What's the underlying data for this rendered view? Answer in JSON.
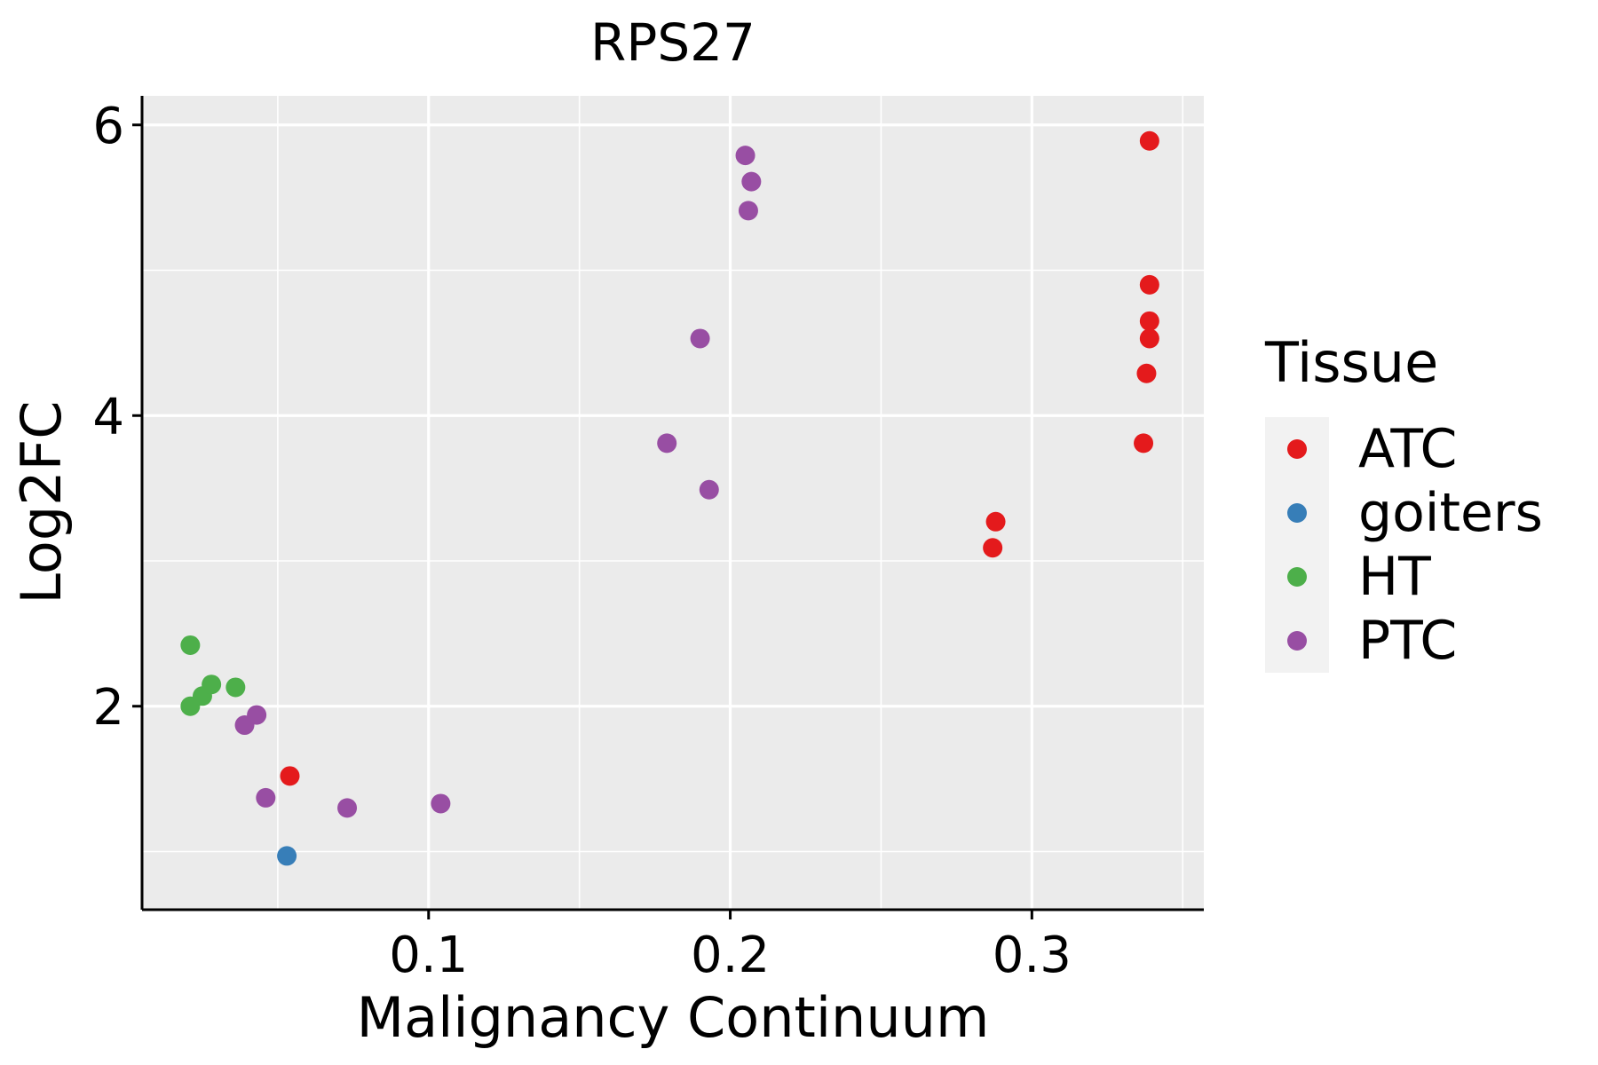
{
  "chart_data": {
    "type": "scatter",
    "title": "RPS27",
    "xlabel": "Malignancy Continuum",
    "ylabel": "Log2FC",
    "xlim": [
      0.005,
      0.357
    ],
    "ylim": [
      0.6,
      6.2
    ],
    "x_ticks": [
      0.1,
      0.2,
      0.3
    ],
    "x_tick_labels": [
      "0.1",
      "0.2",
      "0.3"
    ],
    "x_minor_ticks": [
      0.05,
      0.15,
      0.25,
      0.35
    ],
    "y_ticks": [
      2,
      4,
      6
    ],
    "y_tick_labels": [
      "2",
      "4",
      "6"
    ],
    "y_minor_ticks": [
      1,
      3,
      5
    ],
    "grid": true,
    "legend": {
      "title": "Tissue",
      "position": "right"
    },
    "series": [
      {
        "name": "ATC",
        "color": "#E41A1C",
        "points": [
          {
            "x": 0.054,
            "y": 1.52
          },
          {
            "x": 0.287,
            "y": 3.09
          },
          {
            "x": 0.288,
            "y": 3.27
          },
          {
            "x": 0.337,
            "y": 3.81
          },
          {
            "x": 0.338,
            "y": 4.29
          },
          {
            "x": 0.339,
            "y": 4.53
          },
          {
            "x": 0.339,
            "y": 4.65
          },
          {
            "x": 0.339,
            "y": 4.9
          },
          {
            "x": 0.339,
            "y": 5.89
          }
        ]
      },
      {
        "name": "goiters",
        "color": "#377EB8",
        "points": [
          {
            "x": 0.053,
            "y": 0.97
          }
        ]
      },
      {
        "name": "HT",
        "color": "#4DAF4A",
        "points": [
          {
            "x": 0.021,
            "y": 2.42
          },
          {
            "x": 0.021,
            "y": 2.0
          },
          {
            "x": 0.025,
            "y": 2.07
          },
          {
            "x": 0.028,
            "y": 2.15
          },
          {
            "x": 0.036,
            "y": 2.13
          }
        ]
      },
      {
        "name": "PTC",
        "color": "#984EA3",
        "points": [
          {
            "x": 0.039,
            "y": 1.87
          },
          {
            "x": 0.043,
            "y": 1.94
          },
          {
            "x": 0.046,
            "y": 1.37
          },
          {
            "x": 0.073,
            "y": 1.3
          },
          {
            "x": 0.104,
            "y": 1.33
          },
          {
            "x": 0.179,
            "y": 3.81
          },
          {
            "x": 0.19,
            "y": 4.53
          },
          {
            "x": 0.193,
            "y": 3.49
          },
          {
            "x": 0.205,
            "y": 5.79
          },
          {
            "x": 0.206,
            "y": 5.41
          },
          {
            "x": 0.207,
            "y": 5.61
          }
        ]
      }
    ]
  }
}
